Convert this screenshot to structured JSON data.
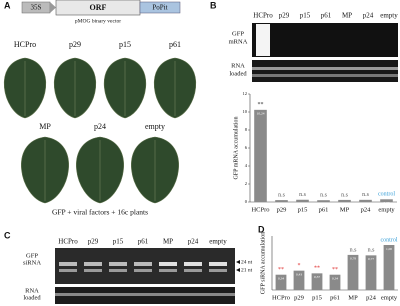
{
  "panel_a": {
    "letter": "A",
    "vector": {
      "promoter": "35S",
      "orf": "ORF",
      "terminator": "PoPit",
      "caption": "pMOG binary vector"
    },
    "leaf_rows": [
      [
        "HCPro",
        "p29",
        "p15",
        "p61"
      ],
      [
        "MP",
        "p24",
        "empty"
      ]
    ],
    "caption": "GFP + viral factors + 16c plants"
  },
  "panel_b": {
    "letter": "B",
    "gel_lanes": [
      "HCPro",
      "p29",
      "p15",
      "p61",
      "MP",
      "p24",
      "empty"
    ],
    "gel_rows": [
      [
        "GFP",
        "mRNA"
      ],
      [
        "RNA",
        "loaded"
      ]
    ],
    "chart": {
      "type": "bar",
      "y_label": "GFP mRNA accumulation",
      "categories": [
        "HCPro",
        "p29",
        "p15",
        "p61",
        "MP",
        "p24",
        "empty"
      ],
      "values": [
        10.24,
        0.21,
        0.25,
        0.2,
        0.23,
        0.24,
        0.3
      ],
      "value_labels": [
        "10,24",
        "0,21",
        "0,25",
        "0,2",
        "0,23",
        "0,24",
        "0,30"
      ],
      "annotations": [
        "**",
        "n.s",
        "n.s",
        "n.s",
        "n.s",
        "n.s",
        "control"
      ],
      "annotation_colors": [
        "#333333",
        "#555555",
        "#555555",
        "#555555",
        "#555555",
        "#555555",
        "#3aa0d8"
      ],
      "color": "#8a8a8a",
      "ylim": [
        0,
        12
      ],
      "yticks": [
        0,
        2,
        4,
        6,
        8,
        10,
        12
      ]
    }
  },
  "panel_c": {
    "letter": "C",
    "gel_lanes": [
      "HCPro",
      "p29",
      "p15",
      "p61",
      "MP",
      "p24",
      "empty"
    ],
    "gel_rows": [
      [
        "GFP",
        "siRNA"
      ],
      [
        "RNA",
        "loaded"
      ]
    ],
    "size_markers": [
      "24 nt",
      "21 nt"
    ]
  },
  "panel_d": {
    "letter": "D",
    "chart": {
      "type": "bar",
      "y_label": "GFP siRNA accumulation",
      "categories": [
        "HCPro",
        "p29",
        "p15",
        "p61",
        "MP",
        "p24",
        "empty"
      ],
      "values": [
        0.34,
        0.43,
        0.37,
        0.34,
        0.78,
        0.77,
        1.0
      ],
      "value_labels": [
        "0,34",
        "0,43",
        "0,37",
        "0,34",
        "0,78",
        "0,77",
        "1,00"
      ],
      "annotations": [
        "**",
        "*",
        "**",
        "**",
        "n.s",
        "n.s",
        "control"
      ],
      "annotation_colors": [
        "#e03030",
        "#e03030",
        "#e03030",
        "#e03030",
        "#555555",
        "#555555",
        "#3aa0d8"
      ],
      "color": "#8a8a8a",
      "ylim": [
        0,
        1.2
      ]
    }
  }
}
